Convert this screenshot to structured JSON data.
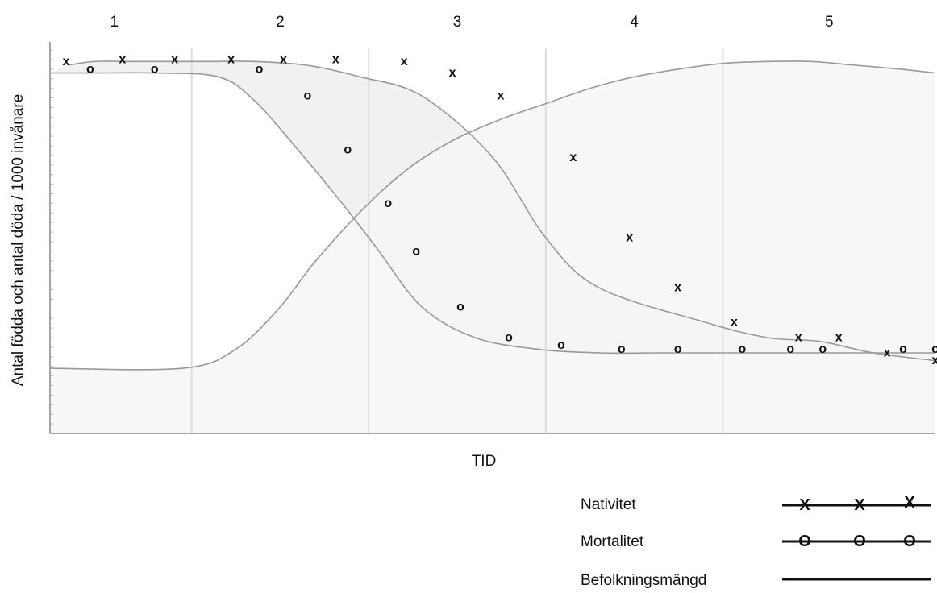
{
  "chart_data": {
    "type": "line",
    "title": "",
    "xlabel": "TID",
    "ylabel": "Antal födda och antal döda / 1000 invånare",
    "stages": [
      "1",
      "2",
      "3",
      "4",
      "5"
    ],
    "stage_boundaries": [
      1.6,
      3.6,
      5.6,
      7.6
    ],
    "xlim": [
      0,
      10
    ],
    "ylim": [
      0,
      100
    ],
    "grid": false,
    "legend_position": "bottom-right",
    "series": [
      {
        "name": "Nativitet",
        "marker": "x",
        "marker_symbol": "X",
        "color": "#999999",
        "x": [
          0.2,
          0.5,
          0.9,
          1.2,
          1.5,
          1.8,
          2.3,
          2.9,
          3.5,
          4.2,
          5.0,
          5.6,
          6.2,
          7.4,
          8.1,
          8.7,
          9.3,
          10.0
        ],
        "values": [
          96,
          97,
          97,
          97,
          97,
          97,
          97,
          96,
          93,
          88,
          72,
          51,
          38,
          29,
          25,
          24,
          21,
          19
        ]
      },
      {
        "name": "Mortalitet",
        "marker": "o",
        "marker_symbol": "O",
        "color": "#999999",
        "x": [
          0.0,
          0.5,
          1.2,
          1.9,
          2.3,
          2.8,
          3.3,
          3.7,
          4.2,
          4.8,
          5.5,
          6.2,
          6.9,
          7.5,
          8.1,
          8.6,
          9.3,
          10.0
        ],
        "values": [
          94,
          94,
          94,
          93,
          87,
          74,
          60,
          48,
          33,
          25,
          22,
          21,
          21,
          21,
          21,
          21,
          21,
          21
        ]
      },
      {
        "name": "Befolkningsmängd",
        "marker": "none",
        "color": "#999999",
        "x": [
          0.0,
          1.5,
          2.1,
          2.6,
          3.0,
          3.6,
          4.1,
          4.6,
          5.1,
          5.6,
          6.1,
          6.6,
          7.1,
          7.6,
          8.1,
          8.6,
          9.1,
          9.6,
          10.0
        ],
        "values": [
          17,
          17,
          22,
          33,
          45,
          60,
          70,
          77,
          82,
          86,
          90,
          93,
          95,
          96.5,
          97,
          97,
          96,
          95,
          94
        ]
      }
    ],
    "plot_markers": {
      "Nativitet": [
        [
          0.2,
          97
        ],
        [
          0.9,
          97.5
        ],
        [
          1.55,
          97.5
        ],
        [
          2.25,
          97.5
        ],
        [
          2.9,
          97.5
        ],
        [
          3.55,
          97.5
        ],
        [
          4.4,
          97
        ],
        [
          5.0,
          94
        ],
        [
          5.6,
          88
        ],
        [
          6.5,
          72
        ],
        [
          7.2,
          51
        ],
        [
          7.8,
          38
        ],
        [
          8.5,
          29
        ],
        [
          9.3,
          25
        ],
        [
          9.8,
          25
        ],
        [
          10.4,
          21
        ],
        [
          11.0,
          19
        ]
      ],
      "Mortalitet": [
        [
          0.5,
          95
        ],
        [
          1.3,
          95
        ],
        [
          2.6,
          95
        ],
        [
          3.2,
          88
        ],
        [
          3.7,
          74
        ],
        [
          4.2,
          60
        ],
        [
          4.55,
          47.5
        ],
        [
          5.1,
          33
        ],
        [
          5.7,
          25
        ],
        [
          6.35,
          23
        ],
        [
          7.1,
          22
        ],
        [
          7.8,
          22
        ],
        [
          8.6,
          22
        ],
        [
          9.2,
          22
        ],
        [
          9.6,
          22
        ],
        [
          10.6,
          22
        ],
        [
          11.0,
          22
        ]
      ]
    }
  },
  "legend": {
    "nativitet": "Nativitet",
    "mortalitet": "Mortalitet",
    "befolkning": "Befolkningsmängd",
    "nativitet_symbol": "X",
    "mortalitet_symbol": "O"
  }
}
